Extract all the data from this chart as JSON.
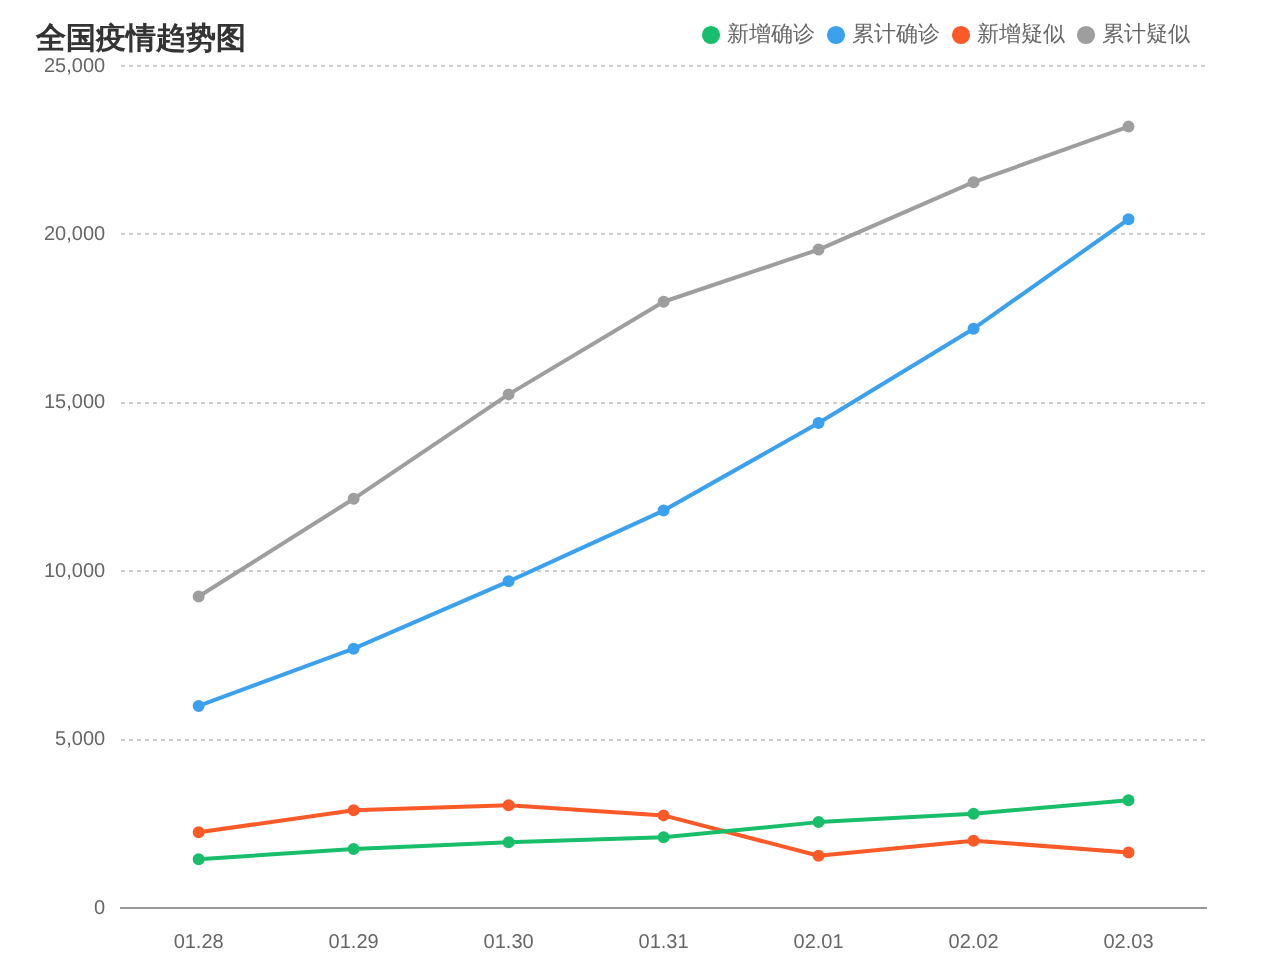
{
  "chart_data": {
    "type": "line",
    "title": "全国疫情趋势图",
    "categories": [
      "01.28",
      "01.29",
      "01.30",
      "01.31",
      "02.01",
      "02.02",
      "02.03"
    ],
    "series": [
      {
        "name": "新增确诊",
        "color": "#19be6b",
        "values": [
          1450,
          1750,
          1950,
          2100,
          2550,
          2800,
          3200
        ]
      },
      {
        "name": "累计确诊",
        "color": "#3ba1ee",
        "values": [
          6000,
          7700,
          9700,
          11800,
          14400,
          17200,
          20450
        ]
      },
      {
        "name": "新增疑似",
        "color": "#fa5a28",
        "values": [
          2250,
          2900,
          3050,
          2750,
          1550,
          2000,
          1650
        ]
      },
      {
        "name": "累计疑似",
        "color": "#9e9e9e",
        "values": [
          9250,
          12150,
          15250,
          18000,
          19550,
          21550,
          23200
        ]
      }
    ],
    "ylim": [
      0,
      25000
    ],
    "yticks": [
      0,
      {
        "value": 5000,
        "label": "5,000"
      },
      {
        "value": 10000,
        "label": "10,000"
      },
      {
        "value": 15000,
        "label": "15,000"
      },
      {
        "value": 20000,
        "label": "20,000"
      },
      {
        "value": 25000,
        "label": "25,000"
      }
    ],
    "grid": "y",
    "legend": "top right",
    "marker": "circle",
    "line_style": "solid"
  }
}
